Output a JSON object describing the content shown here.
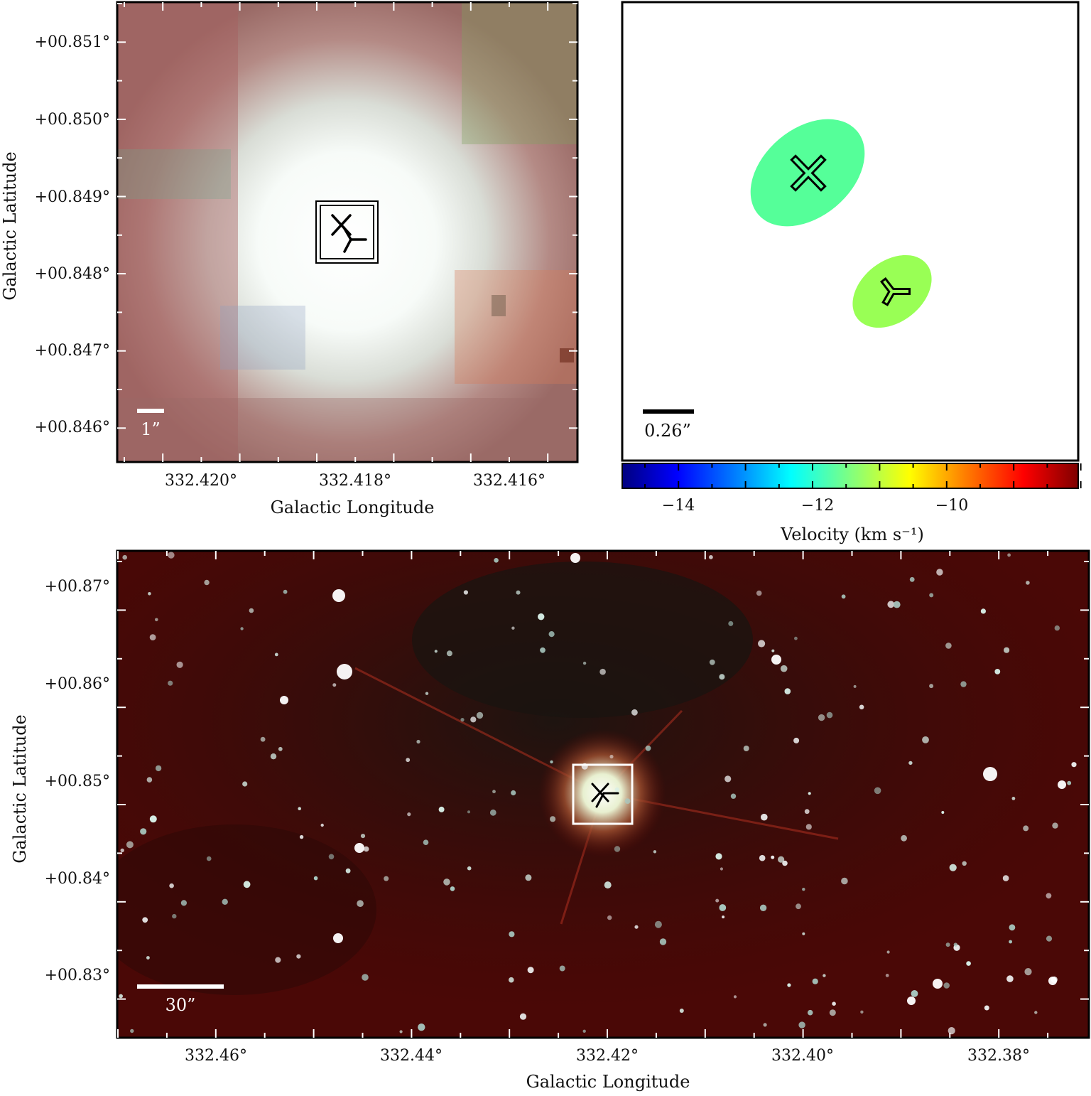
{
  "panel_top_left": {
    "xlabel": "Galactic Longitude",
    "ylabel": "Galactic Latitude",
    "xticks": [
      "332.420°",
      "332.418°",
      "332.416°"
    ],
    "yticks": [
      "+00.851°",
      "+00.850°",
      "+00.849°",
      "+00.848°",
      "+00.847°",
      "+00.846°"
    ],
    "scalebar": "1”"
  },
  "panel_top_right": {
    "scalebar": "0.26”",
    "colorbar_label": "Velocity (km s⁻¹)",
    "colorbar_ticks": [
      "−14",
      "−12",
      "−10"
    ],
    "colorbar_range": [
      -14.9,
      -8.1
    ],
    "colormap": [
      "#00007f",
      "#0000ff",
      "#0080ff",
      "#00ffff",
      "#80ff80",
      "#ffff00",
      "#ff8000",
      "#ff0000",
      "#7f0000"
    ]
  },
  "panel_bottom": {
    "xlabel": "Galactic Longitude",
    "ylabel": "Galactic Latitude",
    "xticks": [
      "332.46°",
      "332.44°",
      "332.42°",
      "332.40°",
      "332.38°"
    ],
    "yticks": [
      "+00.87°",
      "+00.86°",
      "+00.85°",
      "+00.84°",
      "+00.83°"
    ],
    "scalebar": "30”"
  },
  "chart_data": {
    "type": "scatter",
    "series": [
      {
        "marker": "x",
        "velocity": -12.1,
        "color": "#55ff99"
      },
      {
        "marker": "tri",
        "velocity": -11.0,
        "color": "#99ff55"
      }
    ]
  }
}
